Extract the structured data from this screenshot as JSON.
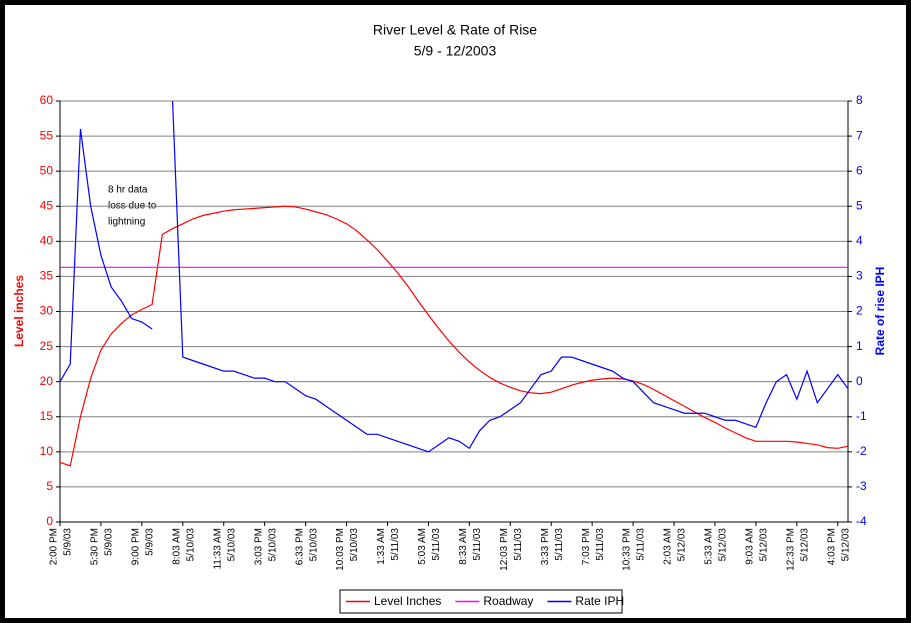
{
  "chart_data": {
    "type": "line",
    "title": "River Level & Rate of Rise",
    "subtitle": "5/9 - 12/2003",
    "ylabel": "Level inches",
    "y2label": "Rate of rise IPH",
    "annotation": [
      "8 hr data",
      "loss due to",
      "lightning"
    ],
    "categories": [
      "2:00 PM",
      null,
      null,
      null,
      "5:30 PM",
      null,
      null,
      null,
      "9:00 PM",
      null,
      null,
      null,
      "8:03 AM",
      null,
      null,
      null,
      "11:33 AM",
      null,
      null,
      null,
      "3:03 PM",
      null,
      null,
      null,
      "6:33 PM",
      null,
      null,
      null,
      "10:03 PM",
      null,
      null,
      null,
      "1:33 AM",
      null,
      null,
      null,
      "5:03 AM",
      null,
      null,
      null,
      "8:33 AM",
      null,
      null,
      null,
      "12:03 PM",
      null,
      null,
      null,
      "3:33 PM",
      null,
      null,
      null,
      "7:03 PM",
      null,
      null,
      null,
      "10:33 PM",
      null,
      null,
      null,
      "2:03 AM",
      null,
      null,
      null,
      "5:33 AM",
      null,
      null,
      null,
      "9:03 AM",
      null,
      null,
      null,
      "12:33 PM",
      null,
      null,
      null,
      "4:03 PM",
      null
    ],
    "category_dates": [
      "5/9/03",
      null,
      null,
      null,
      "5/9/03",
      null,
      null,
      null,
      "5/9/03",
      null,
      null,
      null,
      "5/10/03",
      null,
      null,
      null,
      "5/10/03",
      null,
      null,
      null,
      "5/10/03",
      null,
      null,
      null,
      "5/10/03",
      null,
      null,
      null,
      "5/10/03",
      null,
      null,
      null,
      "5/11/03",
      null,
      null,
      null,
      "5/11/03",
      null,
      null,
      null,
      "5/11/03",
      null,
      null,
      null,
      "5/11/03",
      null,
      null,
      null,
      "5/11/03",
      null,
      null,
      null,
      "5/11/03",
      null,
      null,
      null,
      "5/11/03",
      null,
      null,
      null,
      "5/12/03",
      null,
      null,
      null,
      "5/12/03",
      null,
      null,
      null,
      "5/12/03",
      null,
      null,
      null,
      "5/12/03",
      null,
      null,
      null,
      "5/12/03",
      null
    ],
    "series": [
      {
        "name": "Level Inches",
        "color": "#ff0000",
        "values": [
          8.5,
          8,
          15,
          20.5,
          24.5,
          26.8,
          28.3,
          29.5,
          30.3,
          31,
          41,
          41.8,
          42.5,
          43.2,
          43.7,
          44,
          44.3,
          44.5,
          44.6,
          44.7,
          44.8,
          44.9,
          45,
          44.9,
          44.6,
          44.2,
          43.8,
          43.2,
          42.5,
          41.5,
          40.2,
          38.8,
          37.2,
          35.5,
          33.6,
          31.5,
          29.5,
          27.6,
          25.8,
          24.2,
          22.8,
          21.6,
          20.6,
          19.8,
          19.2,
          18.7,
          18.4,
          18.3,
          18.5,
          19,
          19.5,
          19.9,
          20.2,
          20.4,
          20.5,
          20.4,
          20.1,
          19.6,
          18.9,
          18.1,
          17.3,
          16.5,
          15.7,
          14.9,
          14.2,
          13.4,
          12.7,
          12,
          11.5,
          11.5,
          11.5,
          11.5,
          11.4,
          11.2,
          11,
          10.6,
          10.5,
          10.8
        ]
      },
      {
        "name": "Roadway",
        "color": "#ff00ff",
        "values": [
          36.3,
          36.3,
          36.3,
          36.3,
          36.3,
          36.3,
          36.3,
          36.3,
          36.3,
          36.3,
          36.3,
          36.3,
          36.3,
          36.3,
          36.3,
          36.3,
          36.3,
          36.3,
          36.3,
          36.3,
          36.3,
          36.3,
          36.3,
          36.3,
          36.3,
          36.3,
          36.3,
          36.3,
          36.3,
          36.3,
          36.3,
          36.3,
          36.3,
          36.3,
          36.3,
          36.3,
          36.3,
          36.3,
          36.3,
          36.3,
          36.3,
          36.3,
          36.3,
          36.3,
          36.3,
          36.3,
          36.3,
          36.3,
          36.3,
          36.3,
          36.3,
          36.3,
          36.3,
          36.3,
          36.3,
          36.3,
          36.3,
          36.3,
          36.3,
          36.3,
          36.3,
          36.3,
          36.3,
          36.3,
          36.3,
          36.3,
          36.3,
          36.3,
          36.3,
          36.3,
          36.3,
          36.3,
          36.3,
          36.3,
          36.3,
          36.3,
          36.3,
          36.3
        ]
      },
      {
        "name": "Rate IPH",
        "color": "#0000ff",
        "axis": "y2",
        "values": [
          0,
          0.5,
          7.2,
          5,
          3.6,
          2.7,
          2.3,
          1.8,
          1.7,
          1.5,
          null,
          8,
          0.7,
          0.6,
          0.5,
          0.4,
          0.3,
          0.3,
          0.2,
          0.1,
          0.1,
          0,
          0,
          -0.2,
          -0.4,
          -0.5,
          -0.7,
          -0.9,
          -1.1,
          -1.3,
          -1.5,
          -1.5,
          -1.6,
          -1.7,
          -1.8,
          -1.9,
          -2,
          -1.8,
          -1.6,
          -1.7,
          -1.9,
          -1.4,
          -1.1,
          -1,
          -0.8,
          -0.6,
          -0.2,
          0.2,
          0.3,
          0.7,
          0.7,
          0.6,
          0.5,
          0.4,
          0.3,
          0.1,
          0,
          -0.3,
          -0.6,
          -0.7,
          -0.8,
          -0.9,
          -0.9,
          -0.9,
          -1,
          -1.1,
          -1.1,
          -1.2,
          -1.3,
          -0.6,
          0,
          0.2,
          -0.5,
          0.3,
          -0.6,
          -0.2,
          0.2,
          -0.2
        ]
      }
    ],
    "ylim": [
      0,
      60
    ],
    "yticks": [
      0,
      5,
      10,
      15,
      20,
      25,
      30,
      35,
      40,
      45,
      50,
      55,
      60
    ],
    "y2lim": [
      -4,
      8
    ],
    "y2ticks": [
      -4,
      -3,
      -2,
      -1,
      0,
      1,
      2,
      3,
      4,
      5,
      6,
      7,
      8
    ],
    "grid": true,
    "legend": "bottom",
    "ycolor": "#ff0000",
    "y2color": "#0000ff"
  }
}
